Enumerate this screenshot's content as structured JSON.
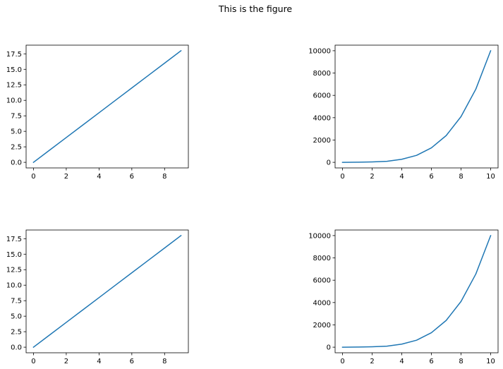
{
  "figure": {
    "title": "This is the figure",
    "line_color": "#1f77b4"
  },
  "chart_data": [
    {
      "type": "line",
      "title": "",
      "xlabel": "",
      "ylabel": "",
      "x": [
        0,
        1,
        2,
        3,
        4,
        5,
        6,
        7,
        8,
        9
      ],
      "series": [
        {
          "values": [
            0,
            2,
            4,
            6,
            8,
            10,
            12,
            14,
            16,
            18
          ]
        }
      ],
      "xlim": [
        -0.45,
        9.45
      ],
      "ylim": [
        -0.9,
        18.9
      ],
      "xticks": [
        0,
        2,
        4,
        6,
        8
      ],
      "xtick_labels": [
        "0",
        "2",
        "4",
        "6",
        "8"
      ],
      "yticks": [
        0,
        2.5,
        5,
        7.5,
        10,
        12.5,
        15,
        17.5
      ],
      "ytick_labels": [
        "0.0",
        "2.5",
        "5.0",
        "7.5",
        "10.0",
        "12.5",
        "15.0",
        "17.5"
      ],
      "grid": false,
      "legend": false
    },
    {
      "type": "line",
      "title": "",
      "xlabel": "",
      "ylabel": "",
      "x": [
        0,
        1,
        2,
        3,
        4,
        5,
        6,
        7,
        8,
        9,
        10
      ],
      "series": [
        {
          "values": [
            0,
            10,
            40,
            90,
            275,
            625,
            1300,
            2400,
            4100,
            6560,
            10000
          ]
        }
      ],
      "xlim": [
        -0.5,
        10.5
      ],
      "ylim": [
        -500,
        10500
      ],
      "xticks": [
        0,
        2,
        4,
        6,
        8,
        10
      ],
      "xtick_labels": [
        "0",
        "2",
        "4",
        "6",
        "8",
        "10"
      ],
      "yticks": [
        0,
        2000,
        4000,
        6000,
        8000,
        10000
      ],
      "ytick_labels": [
        "0",
        "2000",
        "4000",
        "6000",
        "8000",
        "10000"
      ],
      "grid": false,
      "legend": false
    },
    {
      "type": "line",
      "title": "",
      "xlabel": "",
      "ylabel": "",
      "x": [
        0,
        1,
        2,
        3,
        4,
        5,
        6,
        7,
        8,
        9
      ],
      "series": [
        {
          "values": [
            0,
            2,
            4,
            6,
            8,
            10,
            12,
            14,
            16,
            18
          ]
        }
      ],
      "xlim": [
        -0.45,
        9.45
      ],
      "ylim": [
        -0.9,
        18.9
      ],
      "xticks": [
        0,
        2,
        4,
        6,
        8
      ],
      "xtick_labels": [
        "0",
        "2",
        "4",
        "6",
        "8"
      ],
      "yticks": [
        0,
        2.5,
        5,
        7.5,
        10,
        12.5,
        15,
        17.5
      ],
      "ytick_labels": [
        "0.0",
        "2.5",
        "5.0",
        "7.5",
        "10.0",
        "12.5",
        "15.0",
        "17.5"
      ],
      "grid": false,
      "legend": false
    },
    {
      "type": "line",
      "title": "",
      "xlabel": "",
      "ylabel": "",
      "x": [
        0,
        1,
        2,
        3,
        4,
        5,
        6,
        7,
        8,
        9,
        10
      ],
      "series": [
        {
          "values": [
            0,
            10,
            40,
            90,
            275,
            625,
            1300,
            2400,
            4100,
            6560,
            10000
          ]
        }
      ],
      "xlim": [
        -0.5,
        10.5
      ],
      "ylim": [
        -500,
        10500
      ],
      "xticks": [
        0,
        2,
        4,
        6,
        8,
        10
      ],
      "xtick_labels": [
        "0",
        "2",
        "4",
        "6",
        "8",
        "10"
      ],
      "yticks": [
        0,
        2000,
        4000,
        6000,
        8000,
        10000
      ],
      "ytick_labels": [
        "0",
        "2000",
        "4000",
        "6000",
        "8000",
        "10000"
      ],
      "grid": false,
      "legend": false
    }
  ]
}
